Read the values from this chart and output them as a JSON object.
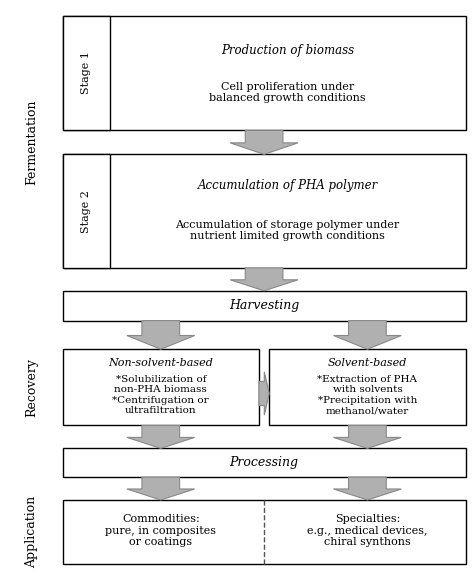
{
  "bg_color": "#ffffff",
  "box_edge": "#000000",
  "arrow_color": "#b0b0b0",
  "arrow_edge": "#888888",
  "fig_width": 4.74,
  "fig_height": 5.79,
  "stage1_title": "Production of biomass",
  "stage1_body": "Cell proliferation under\nbalanced growth conditions",
  "stage1_label": "Stage 1",
  "stage2_title": "Accumulation of PHA polymer",
  "stage2_body": "Accumulation of storage polymer under\nnutrient limited growth conditions",
  "stage2_label": "Stage 2",
  "fermentation_label": "Fermentation",
  "harvesting_label": "Harvesting",
  "recovery_label": "Recovery",
  "nonsol_title": "Non-solvent-based",
  "nonsol_body": "*Solubilization of\nnon-PHA biomass\n*Centrifugation or\nultrafiltration",
  "sol_title": "Solvent-based",
  "sol_body": "*Extraction of PHA\nwith solvents\n*Precipitation with\nmethanol/water",
  "processing_label": "Processing",
  "application_label": "Application",
  "commodities_body": "Commodities:\npure, in composites\nor coatings",
  "specialties_body": "Specialties:\ne.g., medical devices,\nchiral synthons"
}
